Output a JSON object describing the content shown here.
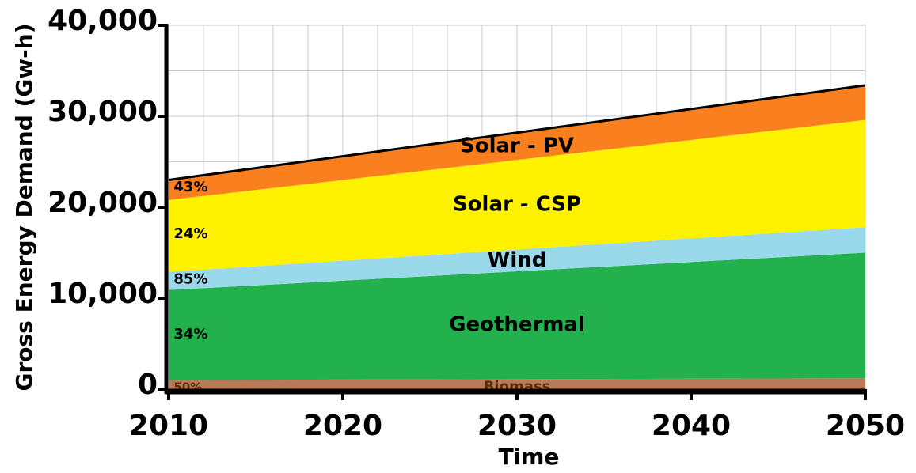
{
  "chart_data": {
    "type": "stacked_area",
    "x_label": "Time",
    "y_label": "Gross Energy Demand (Gw-h)",
    "x": [
      2010,
      2050
    ],
    "series": [
      {
        "name": "Biomass",
        "color": "#b97a57",
        "values": [
          1000,
          1200
        ],
        "share_label": "50%"
      },
      {
        "name": "Geothermal",
        "color": "#22b14c",
        "values": [
          9900,
          13800
        ],
        "share_label": "34%"
      },
      {
        "name": "Wind",
        "color": "#99d9ea",
        "values": [
          2000,
          2800
        ],
        "share_label": "85%"
      },
      {
        "name": "Solar - CSP",
        "color": "#fff200",
        "values": [
          7900,
          11800
        ],
        "share_label": "24%"
      },
      {
        "name": "Solar - PV",
        "color": "#f97f1f",
        "values": [
          2200,
          3800
        ],
        "share_label": "43%"
      }
    ],
    "xlim": [
      2010,
      2050
    ],
    "xticks": [
      2010,
      2020,
      2030,
      2040,
      2050
    ],
    "x_minor_ticks": [
      2012,
      2014,
      2016,
      2018,
      2022,
      2024,
      2026,
      2028,
      2032,
      2034,
      2036,
      2038,
      2042,
      2044,
      2046,
      2048
    ],
    "ylim": [
      0,
      40000
    ],
    "yticks": [
      0,
      {
        "value": 10000,
        "label": "10,000"
      },
      {
        "value": 20000,
        "label": "20,000"
      },
      {
        "value": 30000,
        "label": "30,000"
      },
      {
        "value": 40000,
        "label": "40,000"
      }
    ],
    "y_minor_ticks": [
      5000,
      15000,
      25000,
      35000
    ],
    "grid": true
  }
}
